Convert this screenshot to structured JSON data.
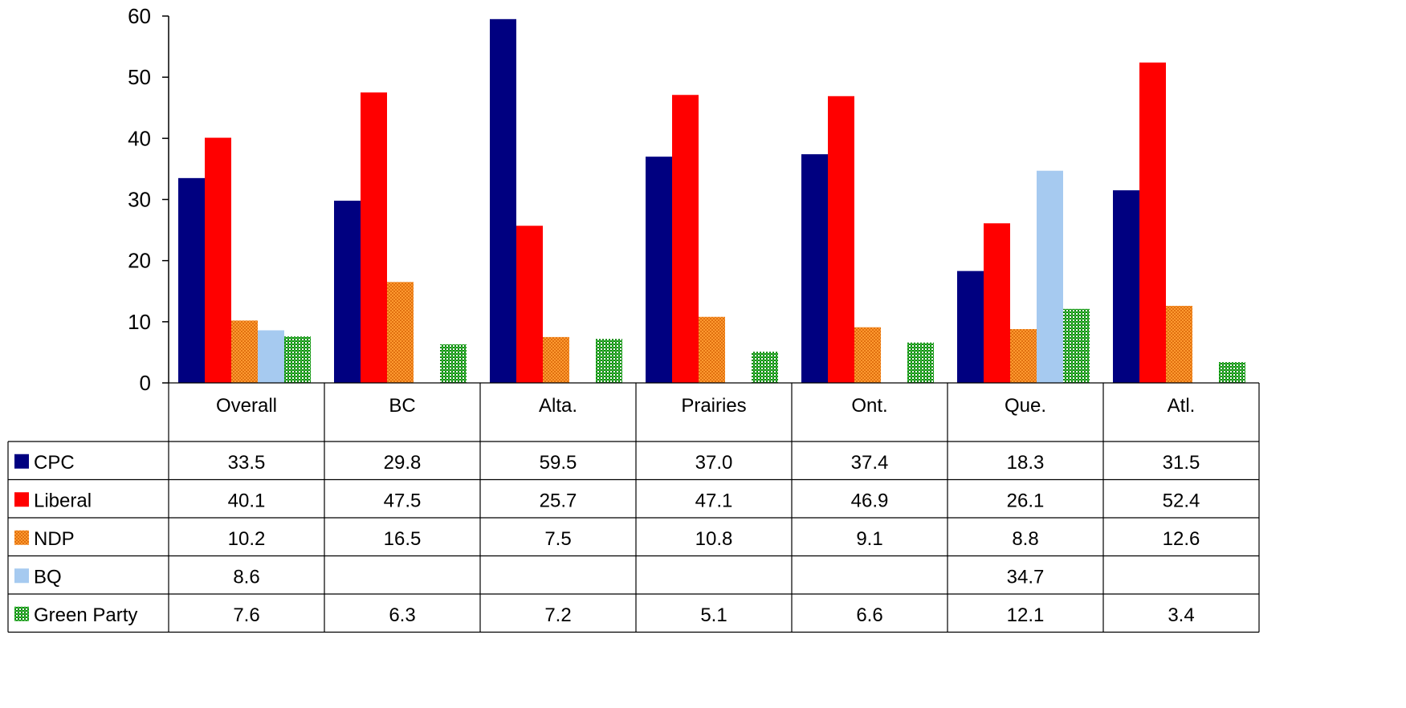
{
  "chart_data": {
    "type": "bar",
    "title": "",
    "xlabel": "",
    "ylabel": "",
    "ylim": [
      0,
      60
    ],
    "yticks": [
      0,
      10,
      20,
      30,
      40,
      50,
      60
    ],
    "grid": false,
    "legend": "data table",
    "categories": [
      "Overall",
      "BC",
      "Alta.",
      "Prairies",
      "Ont.",
      "Que.",
      "Atl."
    ],
    "series": [
      {
        "name": "CPC",
        "color": "#000080",
        "pattern": "solid",
        "values": [
          33.5,
          29.8,
          59.5,
          37.0,
          37.4,
          18.3,
          31.5
        ]
      },
      {
        "name": "Liberal",
        "color": "#ff0000",
        "pattern": "solid",
        "values": [
          40.1,
          47.5,
          25.7,
          47.1,
          46.9,
          26.1,
          52.4
        ]
      },
      {
        "name": "NDP",
        "color": "#ff8c1a",
        "pattern": "dotted",
        "values": [
          10.2,
          16.5,
          7.5,
          10.8,
          9.1,
          8.8,
          12.6
        ]
      },
      {
        "name": "BQ",
        "color": "#a6caf0",
        "pattern": "solid",
        "values": [
          8.6,
          null,
          null,
          null,
          null,
          34.7,
          null
        ]
      },
      {
        "name": "Green Party",
        "color": "#1e9e1e",
        "pattern": "checker",
        "values": [
          7.6,
          6.3,
          7.2,
          5.1,
          6.6,
          12.1,
          3.4
        ]
      }
    ],
    "table": {
      "rows": [
        [
          "33.5",
          "29.8",
          "59.5",
          "37.0",
          "37.4",
          "18.3",
          "31.5"
        ],
        [
          "40.1",
          "47.5",
          "25.7",
          "47.1",
          "46.9",
          "26.1",
          "52.4"
        ],
        [
          "10.2",
          "16.5",
          "7.5",
          "10.8",
          "9.1",
          "8.8",
          "12.6"
        ],
        [
          "8.6",
          "",
          "",
          "",
          "",
          "34.7",
          ""
        ],
        [
          "7.6",
          "6.3",
          "7.2",
          "5.1",
          "6.6",
          "12.1",
          "3.4"
        ]
      ]
    }
  }
}
